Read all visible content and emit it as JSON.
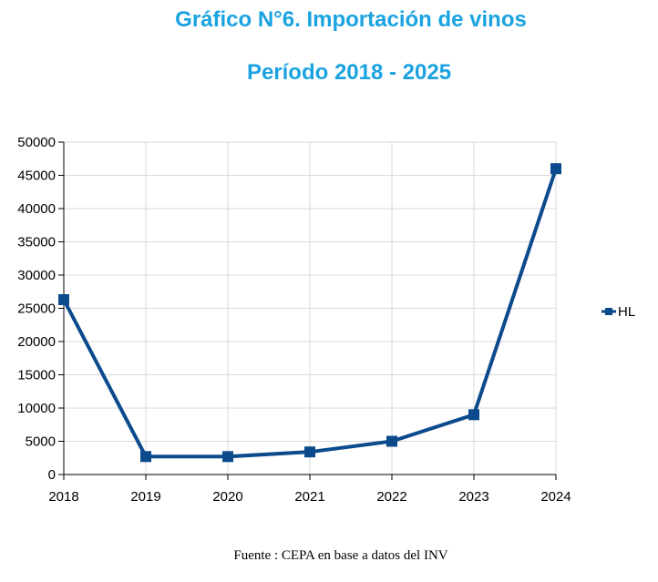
{
  "title": "Gráfico N°6. Importación de vinos",
  "subtitle": "Período 2018 - 2025",
  "source": "Fuente : CEPA en base a datos del INV",
  "colors": {
    "title": "#1aa3e0",
    "series": "#0b4a8c",
    "grid": "#d9d9d9"
  },
  "chart_data": {
    "type": "line",
    "title": "Gráfico N°6. Importación de vinos",
    "subtitle": "Período 2018 - 2025",
    "x": [
      "2018",
      "2019",
      "2020",
      "2021",
      "2022",
      "2023",
      "2024"
    ],
    "series": [
      {
        "name": "HL",
        "values": [
          26300,
          2700,
          2700,
          3400,
          5000,
          9000,
          46000
        ]
      }
    ],
    "ylim": [
      0,
      50000
    ],
    "yticks": [
      "0",
      "5000",
      "10000",
      "15000",
      "20000",
      "25000",
      "30000",
      "35000",
      "40000",
      "45000",
      "50000"
    ],
    "grid": true,
    "legend": "right",
    "marker": "square"
  }
}
